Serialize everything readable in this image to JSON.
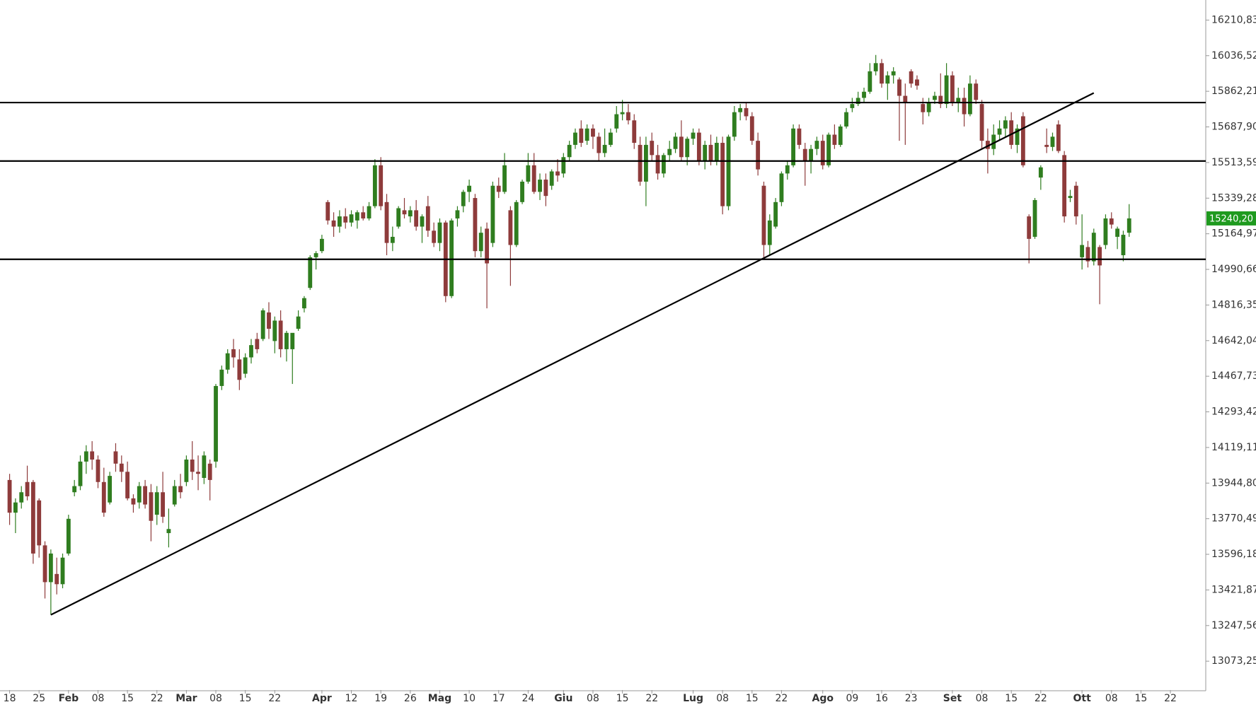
{
  "chart_data": {
    "type": "candlestick",
    "xlim": [
      -1.63,
      203
    ],
    "ylim": [
      12932,
      16309
    ],
    "yticks": [
      {
        "value": 16210.83,
        "label": "16210,83"
      },
      {
        "value": 16036.52,
        "label": "16036,52"
      },
      {
        "value": 15862.21,
        "label": "15862,21"
      },
      {
        "value": 15687.9,
        "label": "15687,90"
      },
      {
        "value": 15513.59,
        "label": "15513,59"
      },
      {
        "value": 15339.28,
        "label": "15339,28"
      },
      {
        "value": 15164.97,
        "label": "15164,97"
      },
      {
        "value": 14990.66,
        "label": "14990,66"
      },
      {
        "value": 14816.35,
        "label": "14816,35"
      },
      {
        "value": 14642.04,
        "label": "14642,04"
      },
      {
        "value": 14467.73,
        "label": "14467,73"
      },
      {
        "value": 14293.42,
        "label": "14293,42"
      },
      {
        "value": 14119.11,
        "label": "14119,11"
      },
      {
        "value": 13944.8,
        "label": "13944,80"
      },
      {
        "value": 13770.49,
        "label": "13770,49"
      },
      {
        "value": 13596.18,
        "label": "13596,18"
      },
      {
        "value": 13421.87,
        "label": "13421,87"
      },
      {
        "value": 13247.56,
        "label": "13247,56"
      },
      {
        "value": 13073.25,
        "label": "13073,25"
      }
    ],
    "xticks": [
      {
        "value": 0,
        "label": "18"
      },
      {
        "value": 5,
        "label": "25"
      },
      {
        "value": 10,
        "label": "Feb"
      },
      {
        "value": 15,
        "label": "08"
      },
      {
        "value": 20,
        "label": "15"
      },
      {
        "value": 25,
        "label": "22"
      },
      {
        "value": 30,
        "label": "Mar"
      },
      {
        "value": 35,
        "label": "08"
      },
      {
        "value": 40,
        "label": "15"
      },
      {
        "value": 45,
        "label": "22"
      },
      {
        "value": 53,
        "label": "Apr"
      },
      {
        "value": 58,
        "label": "12"
      },
      {
        "value": 63,
        "label": "19"
      },
      {
        "value": 68,
        "label": "26"
      },
      {
        "value": 73,
        "label": "Mag"
      },
      {
        "value": 78,
        "label": "10"
      },
      {
        "value": 83,
        "label": "17"
      },
      {
        "value": 88,
        "label": "24"
      },
      {
        "value": 94,
        "label": "Giu"
      },
      {
        "value": 99,
        "label": "08"
      },
      {
        "value": 104,
        "label": "15"
      },
      {
        "value": 109,
        "label": "22"
      },
      {
        "value": 116,
        "label": "Lug"
      },
      {
        "value": 121,
        "label": "08"
      },
      {
        "value": 126,
        "label": "15"
      },
      {
        "value": 131,
        "label": "22"
      },
      {
        "value": 138,
        "label": "Ago"
      },
      {
        "value": 143,
        "label": "09"
      },
      {
        "value": 148,
        "label": "16"
      },
      {
        "value": 153,
        "label": "23"
      },
      {
        "value": 160,
        "label": "Set"
      },
      {
        "value": 165,
        "label": "08"
      },
      {
        "value": 170,
        "label": "15"
      },
      {
        "value": 175,
        "label": "22"
      },
      {
        "value": 182,
        "label": "Ott"
      },
      {
        "value": 187,
        "label": "08"
      },
      {
        "value": 192,
        "label": "15"
      },
      {
        "value": 197,
        "label": "22"
      }
    ],
    "up_color": "#2f7d1f",
    "down_color": "#8e3b3b",
    "last_price": {
      "value": 15240.2,
      "label": "15240,20",
      "color": "#1f9a1f"
    },
    "hlines": [
      15807,
      15521,
      15040
    ],
    "trendline": {
      "x": [
        7,
        184
      ],
      "y": [
        13300,
        15854
      ]
    },
    "candles": [
      [
        13960,
        13990,
        13740,
        13800
      ],
      [
        13800,
        13870,
        13700,
        13850
      ],
      [
        13850,
        13930,
        13820,
        13900
      ],
      [
        13950,
        14030,
        13860,
        13880
      ],
      [
        13950,
        13960,
        13550,
        13600
      ],
      [
        13860,
        13870,
        13580,
        13640
      ],
      [
        13640,
        13660,
        13380,
        13460
      ],
      [
        13460,
        13620,
        13300,
        13600
      ],
      [
        13500,
        13580,
        13400,
        13450
      ],
      [
        13450,
        13600,
        13430,
        13580
      ],
      [
        13600,
        13790,
        13590,
        13770
      ],
      [
        13900,
        13960,
        13880,
        13930
      ],
      [
        13930,
        14080,
        13910,
        14050
      ],
      [
        14050,
        14130,
        13990,
        14100
      ],
      [
        14100,
        14150,
        14010,
        14060
      ],
      [
        14060,
        14080,
        13920,
        13950
      ],
      [
        13950,
        14020,
        13780,
        13800
      ],
      [
        13850,
        14000,
        13840,
        13980
      ],
      [
        14100,
        14140,
        14000,
        14040
      ],
      [
        14040,
        14080,
        13950,
        14000
      ],
      [
        14000,
        14050,
        13860,
        13870
      ],
      [
        13870,
        13890,
        13800,
        13840
      ],
      [
        13850,
        13950,
        13820,
        13930
      ],
      [
        13930,
        13960,
        13820,
        13840
      ],
      [
        13900,
        13940,
        13660,
        13760
      ],
      [
        13790,
        13930,
        13740,
        13900
      ],
      [
        13900,
        14000,
        13750,
        13780
      ],
      [
        13700,
        13820,
        13630,
        13720
      ],
      [
        13840,
        13960,
        13830,
        13930
      ],
      [
        13930,
        13990,
        13870,
        13900
      ],
      [
        13950,
        14080,
        13930,
        14060
      ],
      [
        14060,
        14150,
        13960,
        14000
      ],
      [
        14000,
        14080,
        13910,
        13990
      ],
      [
        13970,
        14100,
        13940,
        14080
      ],
      [
        14040,
        14060,
        13860,
        13960
      ],
      [
        14050,
        14430,
        14020,
        14420
      ],
      [
        14420,
        14520,
        14400,
        14500
      ],
      [
        14500,
        14600,
        14480,
        14580
      ],
      [
        14600,
        14650,
        14510,
        14560
      ],
      [
        14550,
        14600,
        14400,
        14450
      ],
      [
        14480,
        14580,
        14460,
        14560
      ],
      [
        14560,
        14650,
        14530,
        14620
      ],
      [
        14650,
        14680,
        14580,
        14600
      ],
      [
        14650,
        14800,
        14640,
        14790
      ],
      [
        14780,
        14830,
        14650,
        14700
      ],
      [
        14640,
        14760,
        14580,
        14740
      ],
      [
        14740,
        14790,
        14560,
        14600
      ],
      [
        14600,
        14690,
        14540,
        14680
      ],
      [
        14600,
        14650,
        14430,
        14680
      ],
      [
        14700,
        14790,
        14690,
        14760
      ],
      [
        14800,
        14860,
        14780,
        14850
      ],
      [
        14900,
        15060,
        14890,
        15050
      ],
      [
        15050,
        15080,
        14990,
        15070
      ],
      [
        15080,
        15160,
        15070,
        15140
      ],
      [
        15320,
        15330,
        15210,
        15230
      ],
      [
        15230,
        15270,
        15150,
        15200
      ],
      [
        15200,
        15280,
        15170,
        15250
      ],
      [
        15250,
        15290,
        15190,
        15220
      ],
      [
        15220,
        15280,
        15200,
        15260
      ],
      [
        15230,
        15280,
        15190,
        15270
      ],
      [
        15270,
        15300,
        15230,
        15240
      ],
      [
        15240,
        15320,
        15230,
        15300
      ],
      [
        15300,
        15530,
        15290,
        15500
      ],
      [
        15500,
        15540,
        15280,
        15300
      ],
      [
        15320,
        15360,
        15060,
        15120
      ],
      [
        15120,
        15200,
        15080,
        15150
      ],
      [
        15200,
        15300,
        15190,
        15290
      ],
      [
        15280,
        15340,
        15240,
        15260
      ],
      [
        15250,
        15300,
        15220,
        15280
      ],
      [
        15280,
        15330,
        15180,
        15200
      ],
      [
        15200,
        15260,
        15120,
        15250
      ],
      [
        15300,
        15350,
        15150,
        15180
      ],
      [
        15180,
        15220,
        15100,
        15120
      ],
      [
        15120,
        15240,
        15080,
        15220
      ],
      [
        15220,
        15230,
        14830,
        14860
      ],
      [
        14860,
        15240,
        14850,
        15230
      ],
      [
        15240,
        15300,
        15200,
        15280
      ],
      [
        15300,
        15380,
        15270,
        15370
      ],
      [
        15370,
        15430,
        15320,
        15400
      ],
      [
        15340,
        15360,
        15050,
        15080
      ],
      [
        15080,
        15200,
        15050,
        15170
      ],
      [
        15190,
        15220,
        14800,
        15020
      ],
      [
        15120,
        15420,
        15100,
        15400
      ],
      [
        15400,
        15440,
        15340,
        15370
      ],
      [
        15370,
        15560,
        15360,
        15500
      ],
      [
        15280,
        15300,
        14910,
        15110
      ],
      [
        15110,
        15330,
        15100,
        15320
      ],
      [
        15320,
        15430,
        15310,
        15420
      ],
      [
        15420,
        15560,
        15410,
        15500
      ],
      [
        15500,
        15560,
        15360,
        15370
      ],
      [
        15370,
        15460,
        15330,
        15430
      ],
      [
        15430,
        15460,
        15300,
        15350
      ],
      [
        15400,
        15480,
        15380,
        15470
      ],
      [
        15470,
        15530,
        15420,
        15450
      ],
      [
        15460,
        15560,
        15440,
        15540
      ],
      [
        15540,
        15620,
        15520,
        15600
      ],
      [
        15600,
        15680,
        15580,
        15660
      ],
      [
        15680,
        15720,
        15590,
        15610
      ],
      [
        15620,
        15700,
        15600,
        15680
      ],
      [
        15680,
        15700,
        15580,
        15640
      ],
      [
        15640,
        15660,
        15520,
        15560
      ],
      [
        15560,
        15680,
        15540,
        15600
      ],
      [
        15600,
        15680,
        15590,
        15660
      ],
      [
        15680,
        15790,
        15660,
        15750
      ],
      [
        15750,
        15820,
        15720,
        15760
      ],
      [
        15760,
        15800,
        15700,
        15720
      ],
      [
        15720,
        15750,
        15580,
        15610
      ],
      [
        15600,
        15640,
        15400,
        15420
      ],
      [
        15420,
        15640,
        15300,
        15600
      ],
      [
        15620,
        15660,
        15520,
        15550
      ],
      [
        15550,
        15600,
        15430,
        15460
      ],
      [
        15460,
        15560,
        15440,
        15550
      ],
      [
        15550,
        15620,
        15520,
        15580
      ],
      [
        15580,
        15660,
        15560,
        15640
      ],
      [
        15640,
        15720,
        15520,
        15540
      ],
      [
        15540,
        15640,
        15500,
        15630
      ],
      [
        15630,
        15680,
        15600,
        15660
      ],
      [
        15660,
        15680,
        15500,
        15520
      ],
      [
        15520,
        15620,
        15480,
        15600
      ],
      [
        15600,
        15650,
        15500,
        15520
      ],
      [
        15520,
        15640,
        15500,
        15610
      ],
      [
        15610,
        15640,
        15260,
        15300
      ],
      [
        15300,
        15650,
        15280,
        15640
      ],
      [
        15640,
        15790,
        15620,
        15760
      ],
      [
        15760,
        15800,
        15720,
        15780
      ],
      [
        15780,
        15810,
        15720,
        15740
      ],
      [
        15740,
        15760,
        15600,
        15620
      ],
      [
        15620,
        15660,
        15450,
        15480
      ],
      [
        15400,
        15420,
        15050,
        15110
      ],
      [
        15110,
        15260,
        15060,
        15230
      ],
      [
        15200,
        15340,
        15190,
        15320
      ],
      [
        15320,
        15470,
        15300,
        15460
      ],
      [
        15460,
        15520,
        15430,
        15500
      ],
      [
        15500,
        15700,
        15490,
        15680
      ],
      [
        15680,
        15700,
        15580,
        15600
      ],
      [
        15580,
        15610,
        15400,
        15520
      ],
      [
        15520,
        15600,
        15460,
        15580
      ],
      [
        15580,
        15640,
        15550,
        15620
      ],
      [
        15620,
        15650,
        15480,
        15500
      ],
      [
        15500,
        15660,
        15490,
        15650
      ],
      [
        15650,
        15700,
        15580,
        15600
      ],
      [
        15600,
        15700,
        15590,
        15690
      ],
      [
        15690,
        15780,
        15680,
        15760
      ],
      [
        15780,
        15830,
        15760,
        15800
      ],
      [
        15800,
        15860,
        15790,
        15830
      ],
      [
        15830,
        15880,
        15810,
        15860
      ],
      [
        15860,
        16000,
        15850,
        15960
      ],
      [
        15960,
        16040,
        15940,
        16000
      ],
      [
        16000,
        16020,
        15880,
        15900
      ],
      [
        15900,
        15960,
        15820,
        15940
      ],
      [
        15940,
        15980,
        15900,
        15960
      ],
      [
        15920,
        15930,
        15620,
        15840
      ],
      [
        15840,
        15900,
        15600,
        15810
      ],
      [
        15960,
        15970,
        15880,
        15900
      ],
      [
        15920,
        15940,
        15870,
        15890
      ],
      [
        15800,
        15830,
        15700,
        15760
      ],
      [
        15760,
        15830,
        15740,
        15810
      ],
      [
        15820,
        15860,
        15800,
        15840
      ],
      [
        15840,
        15950,
        15780,
        15800
      ],
      [
        15800,
        16000,
        15780,
        15940
      ],
      [
        15940,
        15960,
        15790,
        15810
      ],
      [
        15810,
        15880,
        15760,
        15830
      ],
      [
        15830,
        15880,
        15690,
        15750
      ],
      [
        15750,
        15940,
        15740,
        15900
      ],
      [
        15900,
        15920,
        15800,
        15820
      ],
      [
        15800,
        15820,
        15580,
        15620
      ],
      [
        15620,
        15680,
        15460,
        15580
      ],
      [
        15580,
        15700,
        15550,
        15650
      ],
      [
        15650,
        15720,
        15620,
        15680
      ],
      [
        15680,
        15740,
        15640,
        15720
      ],
      [
        15720,
        15760,
        15580,
        15600
      ],
      [
        15600,
        15700,
        15560,
        15680
      ],
      [
        15740,
        15760,
        15490,
        15500
      ],
      [
        15250,
        15260,
        15020,
        15140
      ],
      [
        15150,
        15340,
        15140,
        15330
      ],
      [
        15440,
        15500,
        15380,
        15490
      ],
      [
        15600,
        15680,
        15560,
        15590
      ],
      [
        15590,
        15660,
        15570,
        15640
      ],
      [
        15700,
        15720,
        15560,
        15570
      ],
      [
        15550,
        15570,
        15220,
        15250
      ],
      [
        15340,
        15380,
        15320,
        15350
      ],
      [
        15400,
        15420,
        15210,
        15250
      ],
      [
        15050,
        15260,
        14990,
        15110
      ],
      [
        15100,
        15130,
        15000,
        15030
      ],
      [
        15030,
        15190,
        15010,
        15170
      ],
      [
        15100,
        15110,
        14820,
        15010
      ],
      [
        15110,
        15260,
        15090,
        15240
      ],
      [
        15240,
        15270,
        15190,
        15210
      ],
      [
        15150,
        15200,
        15090,
        15190
      ],
      [
        15060,
        15180,
        15030,
        15160
      ],
      [
        15170,
        15310,
        15150,
        15240.2
      ]
    ]
  }
}
